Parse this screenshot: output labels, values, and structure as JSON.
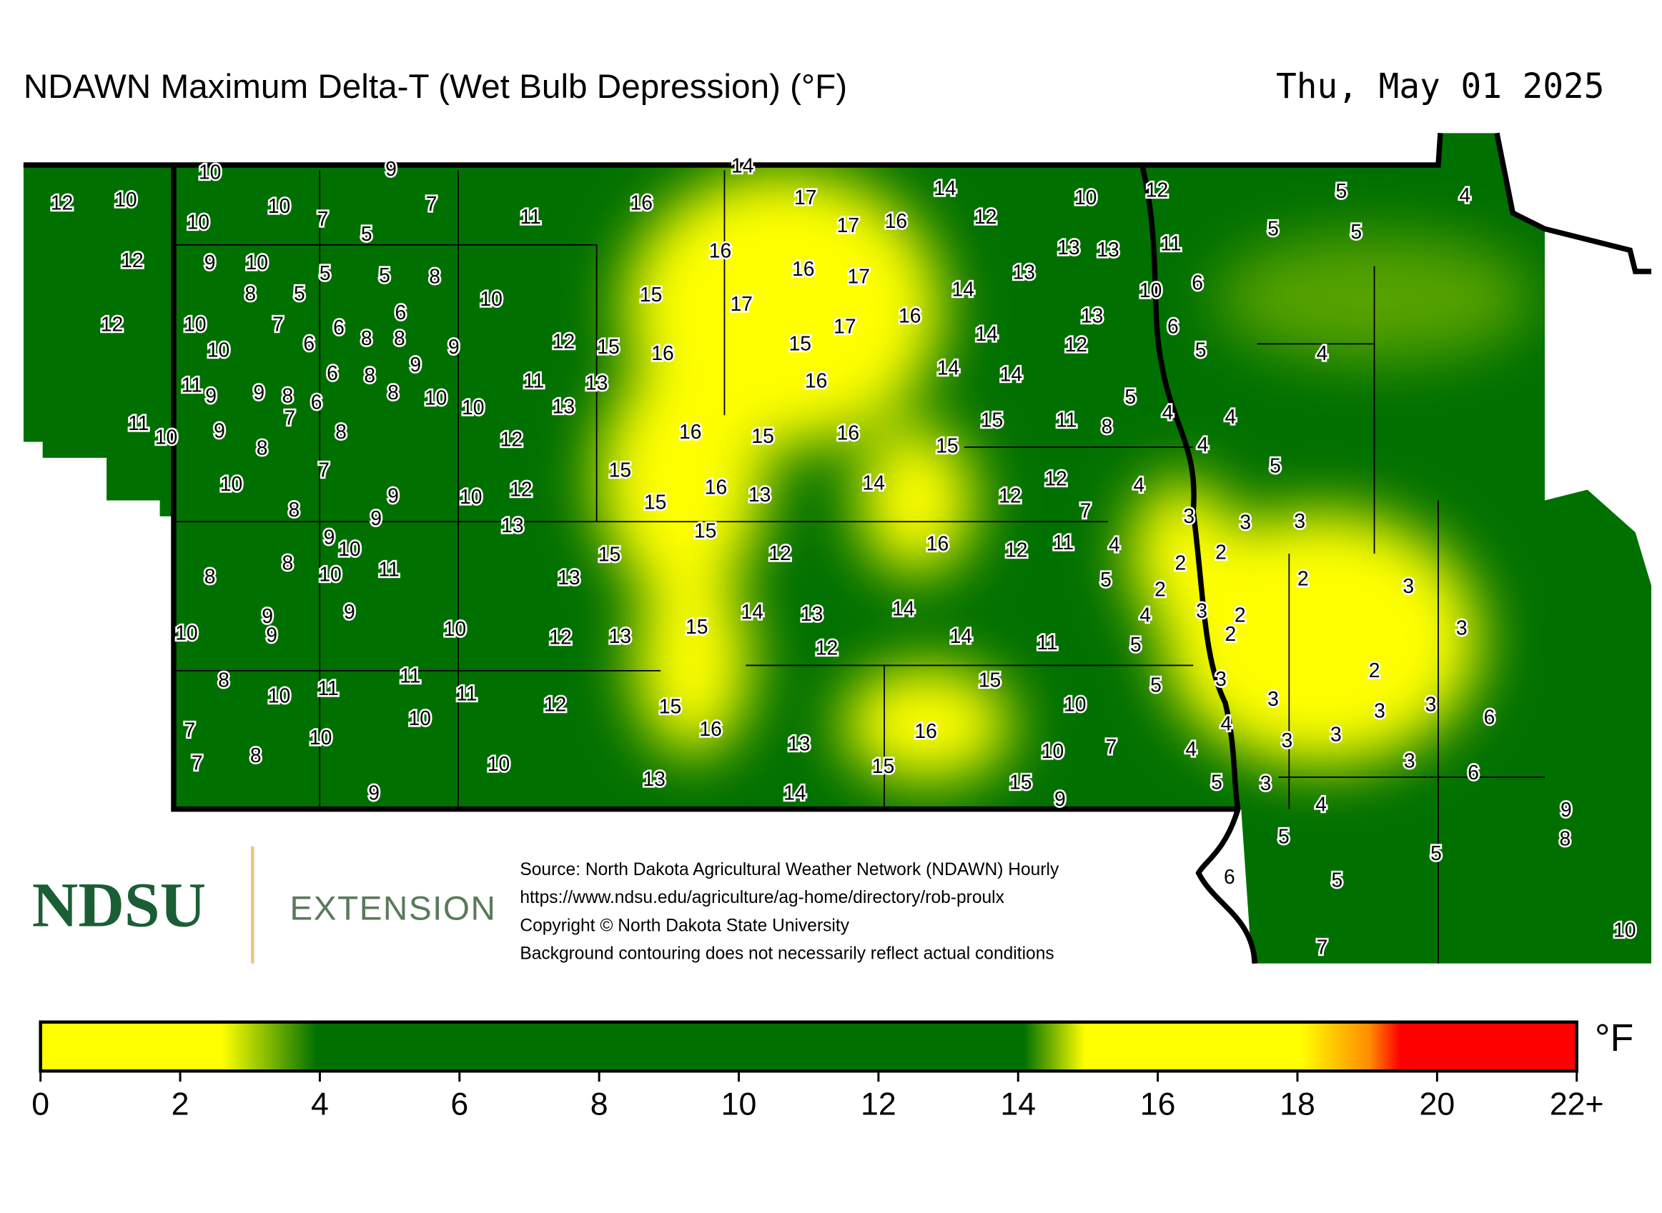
{
  "header": {
    "title": "NDAWN Maximum Delta-T (Wet Bulb Depression) (°F)",
    "date": "Thu, May 01 2025"
  },
  "stations": [
    12,
    10,
    10,
    9,
    10,
    10,
    7,
    7,
    5,
    11,
    16,
    14,
    17,
    17,
    16,
    14,
    12,
    10,
    12,
    5,
    4,
    5,
    5,
    12,
    9,
    10,
    8,
    5,
    5,
    5,
    8,
    10,
    16,
    16,
    17,
    13,
    13,
    11,
    13,
    10,
    6,
    14,
    15,
    17,
    12,
    10,
    7,
    10,
    6,
    6,
    8,
    8,
    6,
    9,
    12,
    15,
    16,
    15,
    17,
    16,
    13,
    6,
    14,
    12,
    5,
    4,
    11,
    9,
    9,
    8,
    6,
    8,
    6,
    9,
    8,
    10,
    10,
    11,
    13,
    13,
    16,
    14,
    14,
    11,
    10,
    9,
    7,
    8,
    8,
    12,
    16,
    15,
    16,
    15,
    15,
    11,
    8,
    5,
    4,
    4,
    4,
    10,
    7,
    9,
    8,
    10,
    12,
    15,
    15,
    16,
    13,
    14,
    12,
    12,
    7,
    4,
    5,
    9,
    13,
    9,
    10,
    8,
    10,
    11,
    8,
    15,
    12,
    16,
    15,
    13,
    12,
    11,
    4,
    3,
    3,
    3,
    2,
    2,
    5,
    2,
    2,
    3,
    9,
    9,
    9,
    10,
    10,
    12,
    13,
    15,
    14,
    13,
    12,
    14,
    14,
    11,
    4,
    5,
    3,
    2,
    2,
    3,
    8,
    10,
    11,
    11,
    11,
    12,
    10,
    15,
    16,
    15,
    10,
    5,
    3,
    3,
    2,
    3,
    3,
    6,
    4,
    3,
    3,
    7,
    7,
    8,
    10,
    10,
    13,
    13,
    16,
    15,
    10,
    7,
    4,
    3,
    6,
    9,
    14,
    15,
    9,
    5,
    3,
    4,
    9,
    8,
    5,
    5,
    6,
    5,
    7,
    10
  ],
  "source": [
    "Source: North Dakota Agricultural Weather Network (NDAWN) Hourly",
    "https://www.ndsu.edu/agriculture/ag-home/directory/rob-proulx",
    "Copyright © North Dakota State University",
    "Background contouring does not necessarily reflect actual conditions"
  ],
  "logo": {
    "name": "NDSU",
    "unit": "EXTENSION"
  },
  "legend": {
    "range": [
      0,
      22
    ],
    "ticks": [
      0,
      2,
      4,
      6,
      8,
      10,
      12,
      14,
      16,
      18,
      20,
      {
        "value": 22,
        "label": "22+"
      }
    ],
    "unit": "°F"
  }
}
